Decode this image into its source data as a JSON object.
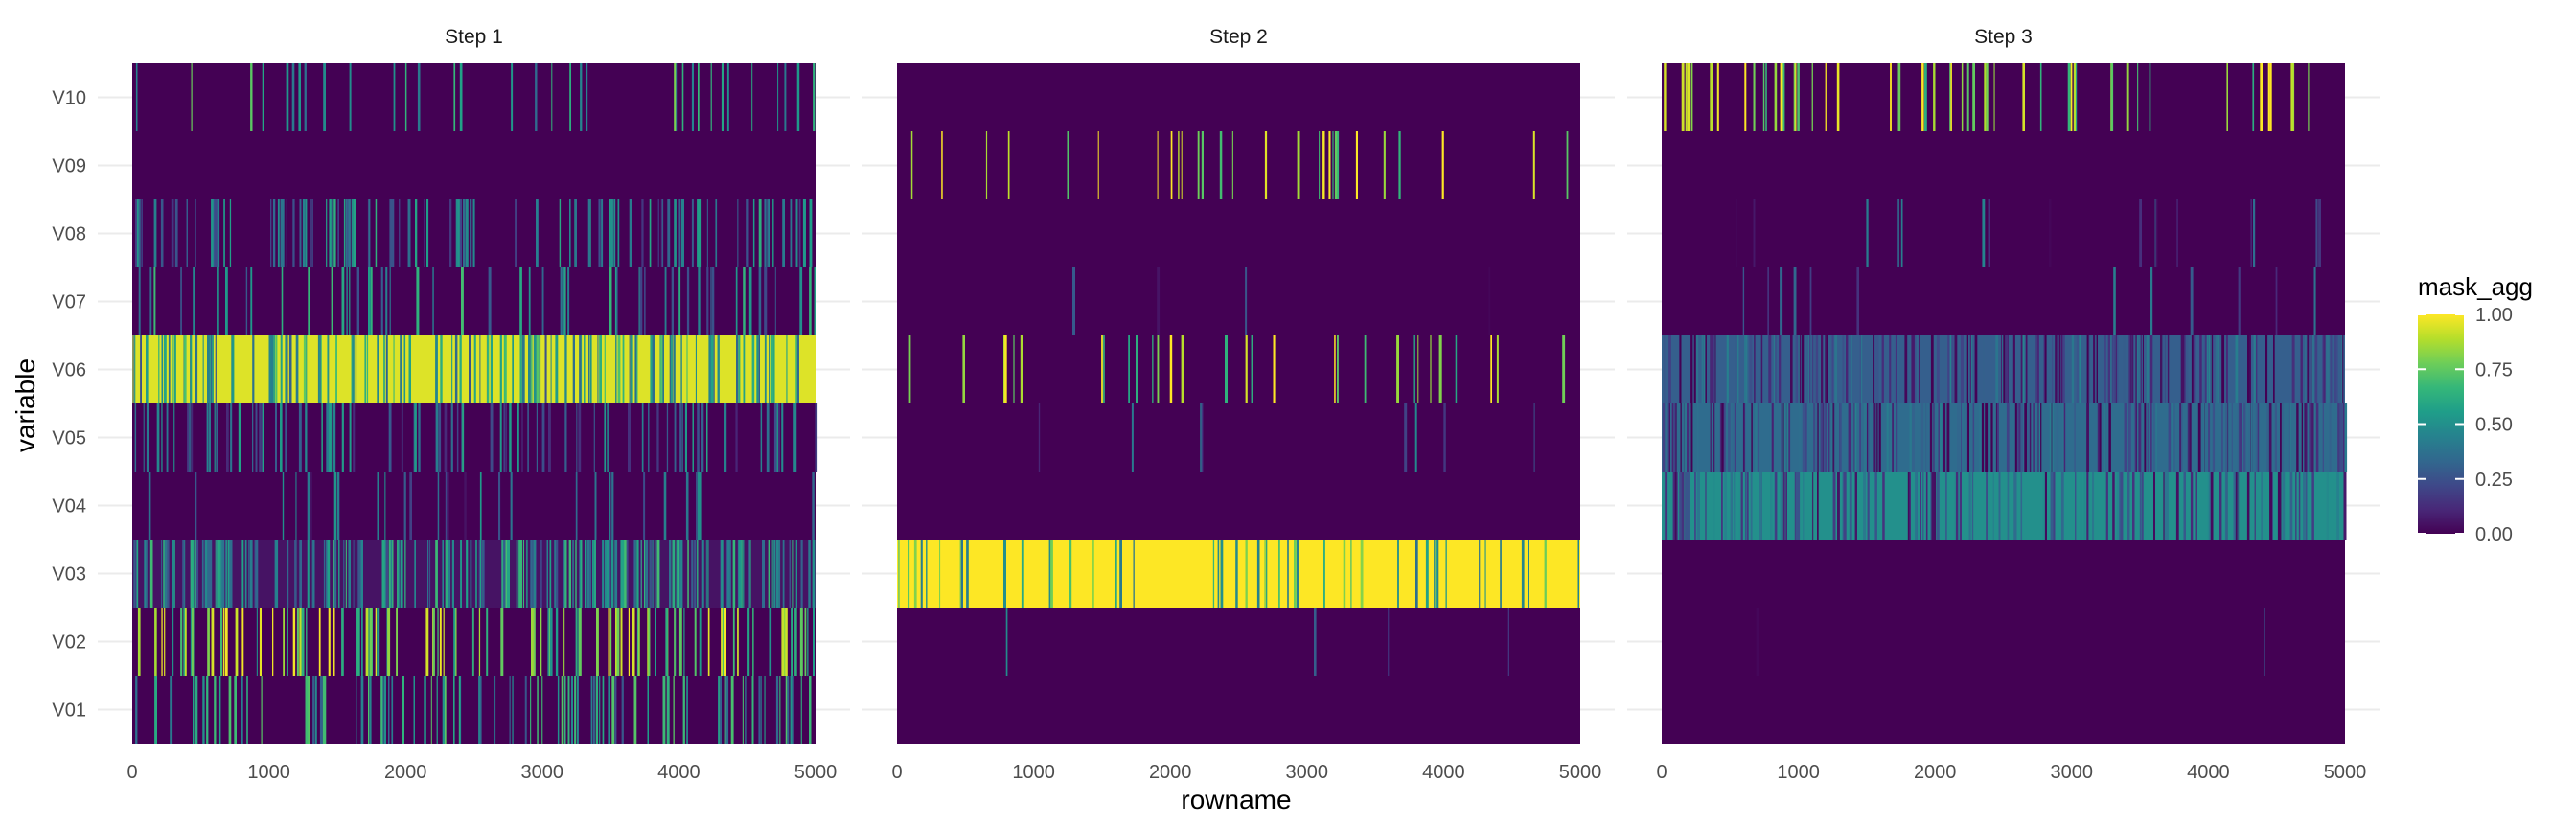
{
  "chart_data": {
    "type": "heatmap",
    "xlabel": "rowname",
    "ylabel": "variable",
    "xlim": [
      0,
      5000
    ],
    "x_ticks": [
      "0",
      "1000",
      "2000",
      "3000",
      "4000",
      "5000"
    ],
    "variables": [
      "V01",
      "V02",
      "V03",
      "V04",
      "V05",
      "V06",
      "V07",
      "V08",
      "V09",
      "V10"
    ],
    "colorscale": {
      "name": "viridis",
      "title": "mask_agg",
      "range": [
        0,
        1
      ],
      "ticks": [
        "0.00",
        "0.25",
        "0.50",
        "0.75",
        "1.00"
      ],
      "colors": [
        "#440154",
        "#3b528b",
        "#21918c",
        "#5ec962",
        "#fde725"
      ]
    },
    "panels": [
      {
        "title": "Step 1",
        "rows": [
          {
            "variable": "V10",
            "background": 0.0,
            "spike_density": 0.09,
            "spike_value": 0.55
          },
          {
            "variable": "V09",
            "background": 0.0,
            "spike_density": 0.0,
            "spike_value": 0.0
          },
          {
            "variable": "V08",
            "background": 0.0,
            "spike_density": 0.3,
            "spike_value": 0.4
          },
          {
            "variable": "V07",
            "background": 0.0,
            "spike_density": 0.15,
            "spike_value": 0.45
          },
          {
            "variable": "V06",
            "background": 0.95,
            "spike_density": 0.35,
            "spike_value": 0.5
          },
          {
            "variable": "V05",
            "background": 0.0,
            "spike_density": 0.25,
            "spike_value": 0.35
          },
          {
            "variable": "V04",
            "background": 0.0,
            "spike_density": 0.08,
            "spike_value": 0.3
          },
          {
            "variable": "V03",
            "background": 0.05,
            "spike_density": 0.55,
            "spike_value": 0.45
          },
          {
            "variable": "V02",
            "background": 0.0,
            "spike_density": 0.3,
            "spike_value": 0.75
          },
          {
            "variable": "V01",
            "background": 0.0,
            "spike_density": 0.25,
            "spike_value": 0.5
          }
        ]
      },
      {
        "title": "Step 2",
        "rows": [
          {
            "variable": "V10",
            "background": 0.0,
            "spike_density": 0.0,
            "spike_value": 0.0
          },
          {
            "variable": "V09",
            "background": 0.0,
            "spike_density": 0.07,
            "spike_value": 0.9
          },
          {
            "variable": "V08",
            "background": 0.0,
            "spike_density": 0.0,
            "spike_value": 0.0
          },
          {
            "variable": "V07",
            "background": 0.0,
            "spike_density": 0.01,
            "spike_value": 0.25
          },
          {
            "variable": "V06",
            "background": 0.0,
            "spike_density": 0.08,
            "spike_value": 0.8
          },
          {
            "variable": "V05",
            "background": 0.0,
            "spike_density": 0.02,
            "spike_value": 0.25
          },
          {
            "variable": "V04",
            "background": 0.0,
            "spike_density": 0.0,
            "spike_value": 0.0
          },
          {
            "variable": "V03",
            "background": 1.0,
            "spike_density": 0.12,
            "spike_value": 0.6
          },
          {
            "variable": "V02",
            "background": 0.0,
            "spike_density": 0.01,
            "spike_value": 0.25
          },
          {
            "variable": "V01",
            "background": 0.0,
            "spike_density": 0.0,
            "spike_value": 0.0
          }
        ]
      },
      {
        "title": "Step 3",
        "rows": [
          {
            "variable": "V10",
            "background": 0.0,
            "spike_density": 0.14,
            "spike_value": 0.85
          },
          {
            "variable": "V09",
            "background": 0.0,
            "spike_density": 0.0,
            "spike_value": 0.0
          },
          {
            "variable": "V08",
            "background": 0.0,
            "spike_density": 0.04,
            "spike_value": 0.25
          },
          {
            "variable": "V07",
            "background": 0.0,
            "spike_density": 0.03,
            "spike_value": 0.3
          },
          {
            "variable": "V06",
            "background": 0.3,
            "spike_density": 0.5,
            "spike_value": 0.2
          },
          {
            "variable": "V05",
            "background": 0.35,
            "spike_density": 0.5,
            "spike_value": 0.2
          },
          {
            "variable": "V04",
            "background": 0.5,
            "spike_density": 0.35,
            "spike_value": 0.25
          },
          {
            "variable": "V03",
            "background": 0.0,
            "spike_density": 0.0,
            "spike_value": 0.0
          },
          {
            "variable": "V02",
            "background": 0.0,
            "spike_density": 0.005,
            "spike_value": 0.25
          },
          {
            "variable": "V01",
            "background": 0.0,
            "spike_density": 0.0,
            "spike_value": 0.0
          }
        ]
      }
    ]
  }
}
